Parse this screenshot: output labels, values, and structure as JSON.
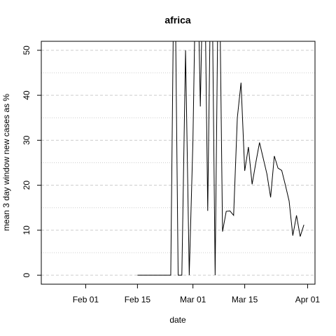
{
  "chart_data": {
    "type": "line",
    "title": "africa",
    "x_label": "date",
    "y_label": "mean  3  day window new cases as %",
    "x": [
      "Feb 15",
      "Feb 16",
      "Feb 17",
      "Feb 18",
      "Feb 19",
      "Feb 20",
      "Feb 21",
      "Feb 22",
      "Feb 23",
      "Feb 24",
      "Feb 25",
      "Feb 26",
      "Feb 27",
      "Feb 28",
      "Feb 29",
      "Mar 01",
      "Mar 02",
      "Mar 03",
      "Mar 04",
      "Mar 05",
      "Mar 06",
      "Mar 07",
      "Mar 08",
      "Mar 09",
      "Mar 10",
      "Mar 11",
      "Mar 12",
      "Mar 13",
      "Mar 14",
      "Mar 15",
      "Mar 16",
      "Mar 17",
      "Mar 18",
      "Mar 19",
      "Mar 20",
      "Mar 21",
      "Mar 22",
      "Mar 23",
      "Mar 24",
      "Mar 25",
      "Mar 26",
      "Mar 27",
      "Mar 28",
      "Mar 29",
      "Mar 30",
      "Mar 31"
    ],
    "values": [
      0,
      0,
      0,
      0,
      0,
      0,
      0,
      0,
      0,
      0,
      80,
      0,
      0,
      50,
      0,
      30,
      80,
      37.5,
      80,
      14.3,
      80,
      0,
      80,
      9.7,
      14.2,
      14.3,
      13.3,
      35,
      42.8,
      23.2,
      28.5,
      20.2,
      25,
      29.5,
      26,
      22.5,
      17.3,
      26.5,
      23.8,
      23.3,
      20,
      16.5,
      8.8,
      13.3,
      8.6,
      11.2
    ],
    "color": "#000000",
    "xlim": [
      "Jan 20",
      "Apr 03"
    ],
    "xticks": [
      "Feb 01",
      "Feb 15",
      "Mar 01",
      "Mar 15",
      "Apr 01"
    ],
    "ylim": [
      -2,
      52
    ],
    "yticks": [
      0,
      10,
      20,
      30,
      40,
      50
    ],
    "yminor": [
      5,
      15,
      25,
      35,
      45
    ],
    "grid": true
  }
}
